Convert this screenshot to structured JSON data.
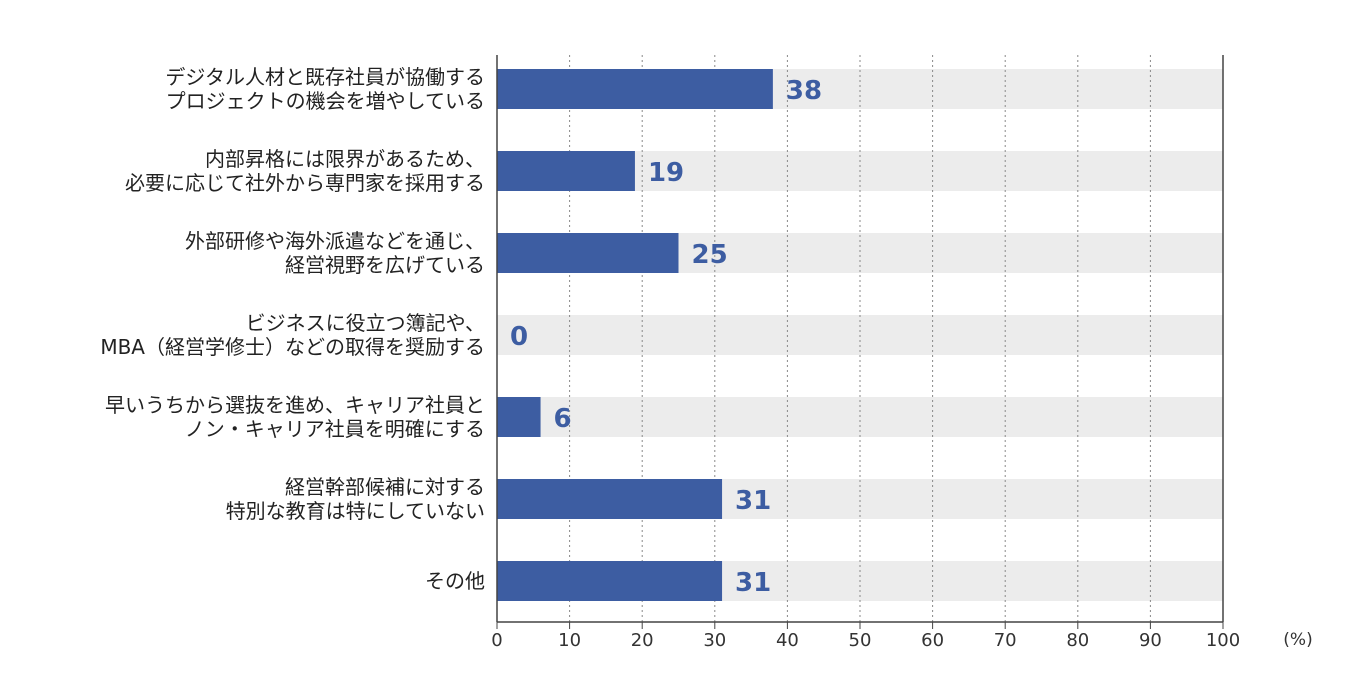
{
  "chart_data": {
    "type": "bar",
    "orientation": "horizontal",
    "categories": [
      [
        "デジタル人材と既存社員が協働する",
        "プロジェクトの機会を増やしている"
      ],
      [
        "内部昇格には限界があるため、",
        "必要に応じて社外から専門家を採用する"
      ],
      [
        "外部研修や海外派遣などを通じ、",
        "経営視野を広げている"
      ],
      [
        "ビジネスに役立つ簿記や、",
        "MBA（経営学修士）などの取得を奨励する"
      ],
      [
        "早いうちから選抜を進め、キャリア社員と",
        "ノン・キャリア社員を明確にする"
      ],
      [
        "経営幹部候補に対する",
        "特別な教育は特にしていない"
      ],
      [
        "その他"
      ]
    ],
    "values": [
      38,
      19,
      25,
      0,
      6,
      31,
      31
    ],
    "value_labels": [
      "38",
      "19",
      "25",
      "0",
      "6",
      "31",
      "31"
    ],
    "xlim": [
      0,
      100
    ],
    "x_ticks": [
      "0",
      "10",
      "20",
      "30",
      "40",
      "50",
      "60",
      "70",
      "80",
      "90",
      "100"
    ],
    "unit": "(%)",
    "grid": "vertical-dotted",
    "legend": "none",
    "colors": {
      "bar": "#3d5da2",
      "track": "#ececec",
      "value_text": "#3d5da2",
      "grid": "#888888",
      "axis": "#444444"
    }
  }
}
